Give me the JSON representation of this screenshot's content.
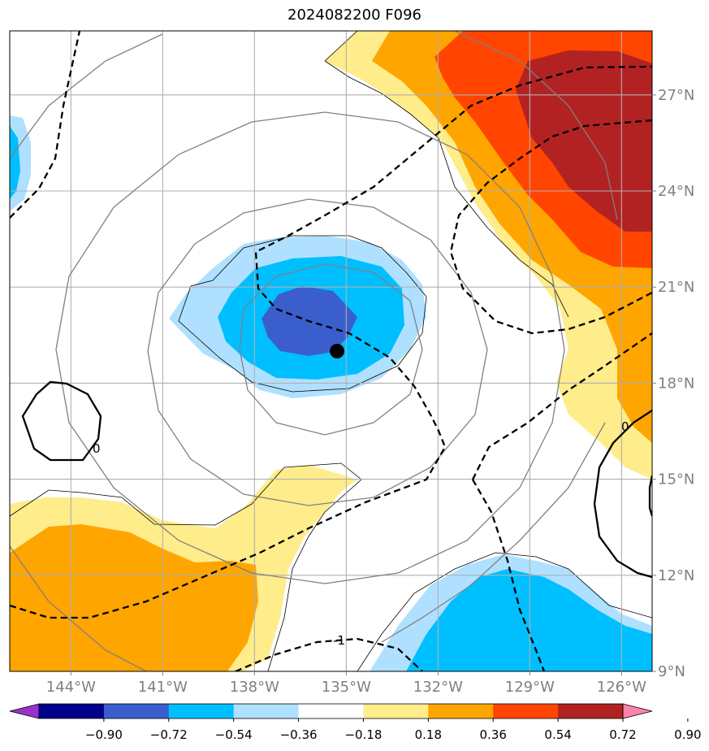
{
  "title": "2024082200 F096",
  "map": {
    "lon_range": [
      -146,
      -125
    ],
    "lat_range": [
      9,
      29
    ],
    "lon_ticks": [
      {
        "value": -144,
        "label": "144°W"
      },
      {
        "value": -141,
        "label": "141°W"
      },
      {
        "value": -138,
        "label": "138°W"
      },
      {
        "value": -135,
        "label": "135°W"
      },
      {
        "value": -132,
        "label": "132°W"
      },
      {
        "value": -129,
        "label": "129°W"
      },
      {
        "value": -126,
        "label": "126°W"
      }
    ],
    "lat_ticks": [
      {
        "value": 27,
        "label": "27°N"
      },
      {
        "value": 24,
        "label": "24°N"
      },
      {
        "value": 21,
        "label": "21°N"
      },
      {
        "value": 18,
        "label": "18°N"
      },
      {
        "value": 15,
        "label": "15°N"
      },
      {
        "value": 12,
        "label": "12°N"
      },
      {
        "value": 9,
        "label": "9°N"
      }
    ],
    "grid": true,
    "storm_center": {
      "lon": -135.3,
      "lat": 19.0
    },
    "contour_labels": [
      "0",
      "0",
      "-1"
    ]
  },
  "colorbar": {
    "levels": [
      "−0.90",
      "−0.72",
      "−0.54",
      "−0.36",
      "−0.18",
      "0.18",
      "0.36",
      "0.54",
      "0.72",
      "0.90"
    ],
    "colors": [
      "#9932cc",
      "#00008b",
      "#3a5fcd",
      "#00bfff",
      "#b0e0ff",
      "#ffffff",
      "#ffec8b",
      "#ffa500",
      "#ff4500",
      "#b22222",
      "#ff82ab"
    ]
  }
}
